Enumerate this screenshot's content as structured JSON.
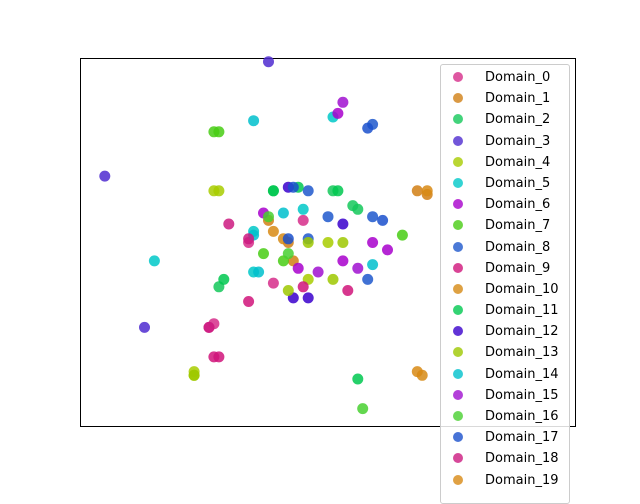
{
  "chart_data": {
    "type": "scatter",
    "title": "",
    "xlabel": "",
    "ylabel": "",
    "xlim": [
      0,
      100
    ],
    "ylim": [
      0,
      100
    ],
    "grid": false,
    "axes_ticks": false,
    "legend_position": "top-right",
    "series": [
      {
        "name": "Domain_0",
        "color": "#d62d8a",
        "points": [
          [
            34,
            50
          ],
          [
            45,
            56
          ],
          [
            39,
            39
          ],
          [
            26,
            27
          ],
          [
            27,
            28
          ]
        ]
      },
      {
        "name": "Domain_1",
        "color": "#d17f14",
        "points": [
          [
            38,
            56
          ],
          [
            43,
            45
          ],
          [
            68,
            64
          ],
          [
            70,
            63
          ],
          [
            42,
            50
          ]
        ]
      },
      {
        "name": "Domain_2",
        "color": "#14c85a",
        "points": [
          [
            39,
            64
          ],
          [
            51,
            64
          ],
          [
            55,
            60
          ],
          [
            56,
            59
          ],
          [
            28,
            38
          ]
        ]
      },
      {
        "name": "Domain_3",
        "color": "#4f2cd0",
        "points": [
          [
            38,
            99
          ],
          [
            5,
            68
          ],
          [
            13,
            27
          ]
        ]
      },
      {
        "name": "Domain_4",
        "color": "#a8cc00",
        "points": [
          [
            27,
            64
          ],
          [
            28,
            64
          ],
          [
            50,
            50
          ],
          [
            46,
            40
          ],
          [
            23,
            14
          ],
          [
            23,
            15
          ]
        ]
      },
      {
        "name": "Domain_5",
        "color": "#00c8c8",
        "points": [
          [
            35,
            53
          ],
          [
            45,
            59
          ],
          [
            51,
            84
          ],
          [
            35,
            42
          ],
          [
            15,
            45
          ]
        ]
      },
      {
        "name": "Domain_6",
        "color": "#a800cc",
        "points": [
          [
            37,
            58
          ],
          [
            44,
            43
          ],
          [
            53,
            45
          ],
          [
            59,
            50
          ],
          [
            62,
            48
          ],
          [
            52,
            85
          ]
        ]
      },
      {
        "name": "Domain_7",
        "color": "#48cc14",
        "points": [
          [
            27,
            80
          ],
          [
            28,
            80
          ],
          [
            37,
            47
          ],
          [
            41,
            45
          ],
          [
            65,
            52
          ]
        ]
      },
      {
        "name": "Domain_8",
        "color": "#1e58cc",
        "points": [
          [
            46,
            64
          ],
          [
            50,
            57
          ],
          [
            46,
            51
          ],
          [
            59,
            57
          ],
          [
            58,
            40
          ],
          [
            59,
            82
          ]
        ]
      },
      {
        "name": "Domain_9",
        "color": "#d0147a",
        "points": [
          [
            34,
            34
          ],
          [
            45,
            38
          ],
          [
            54,
            37
          ],
          [
            27,
            19
          ],
          [
            28,
            19
          ]
        ]
      },
      {
        "name": "Domain_10",
        "color": "#d68a14",
        "points": [
          [
            41,
            51
          ],
          [
            69,
            14
          ]
        ]
      },
      {
        "name": "Domain_11",
        "color": "#00c850",
        "points": [
          [
            39,
            64
          ],
          [
            52,
            64
          ],
          [
            29,
            40
          ],
          [
            56,
            13
          ],
          [
            44,
            65
          ]
        ]
      },
      {
        "name": "Domain_12",
        "color": "#3a00cc",
        "points": [
          [
            42,
            65
          ],
          [
            53,
            55
          ],
          [
            46,
            35
          ],
          [
            43,
            35
          ]
        ]
      },
      {
        "name": "Domain_13",
        "color": "#9ec800",
        "points": [
          [
            42,
            37
          ],
          [
            46,
            50
          ],
          [
            53,
            50
          ],
          [
            51,
            40
          ],
          [
            23,
            14
          ]
        ]
      },
      {
        "name": "Domain_14",
        "color": "#00c0cc",
        "points": [
          [
            35,
            52
          ],
          [
            35,
            83
          ],
          [
            41,
            58
          ],
          [
            59,
            44
          ],
          [
            36,
            42
          ]
        ]
      },
      {
        "name": "Domain_15",
        "color": "#a010d0",
        "points": [
          [
            48,
            42
          ],
          [
            56,
            43
          ],
          [
            53,
            88
          ]
        ]
      },
      {
        "name": "Domain_16",
        "color": "#48d030",
        "points": [
          [
            57,
            5
          ],
          [
            42,
            47
          ],
          [
            38,
            57
          ]
        ]
      },
      {
        "name": "Domain_17",
        "color": "#1a50cc",
        "points": [
          [
            42,
            51
          ],
          [
            43,
            65
          ],
          [
            58,
            81
          ],
          [
            61,
            56
          ]
        ]
      },
      {
        "name": "Domain_18",
        "color": "#cc1a80",
        "points": [
          [
            34,
            51
          ],
          [
            30,
            55
          ],
          [
            26,
            27
          ]
        ]
      },
      {
        "name": "Domain_19",
        "color": "#d88a14",
        "points": [
          [
            39,
            53
          ],
          [
            68,
            15
          ],
          [
            70,
            64
          ]
        ]
      }
    ]
  }
}
